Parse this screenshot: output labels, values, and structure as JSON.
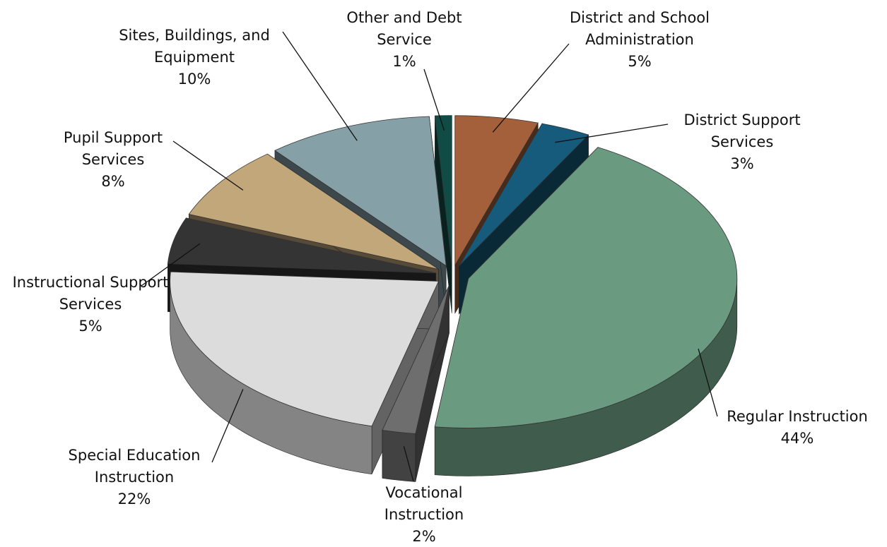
{
  "chart_data": {
    "type": "pie",
    "categories": [
      "District and School Administration",
      "District Support Services",
      "Regular Instruction",
      "Vocational Instruction",
      "Special Education Instruction",
      "Instructional Support Services",
      "Pupil Support Services",
      "Sites, Buildings, and Equipment",
      "Other and Debt Service"
    ],
    "values": [
      5,
      3,
      44,
      2,
      22,
      5,
      8,
      10,
      1
    ],
    "value_labels": [
      "5%",
      "3%",
      "44%",
      "2%",
      "22%",
      "5%",
      "8%",
      "10%",
      "1%"
    ],
    "colors": [
      "#a3603b",
      "#165b7b",
      "#6a9a80",
      "#6e6e6e",
      "#dcdcdc",
      "#343434",
      "#c2a77a",
      "#86a0a8",
      "#114b46"
    ]
  }
}
